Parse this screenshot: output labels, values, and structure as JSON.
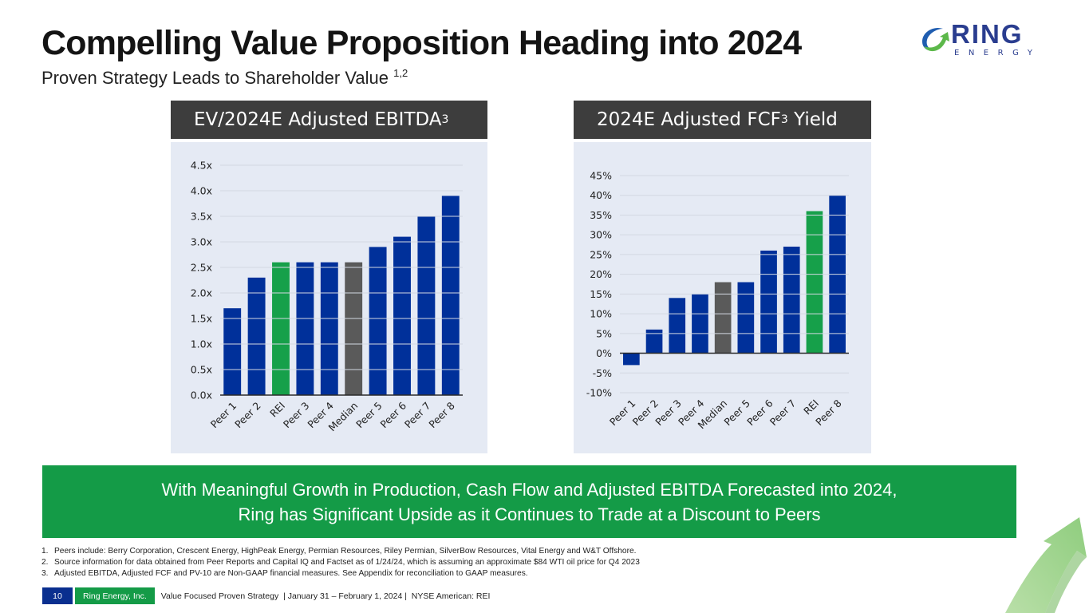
{
  "header": {
    "title": "Compelling Value Proposition Heading into 2024",
    "subtitle": "Proven Strategy Leads to Shareholder Value",
    "subtitle_sup": "1,2"
  },
  "logo": {
    "word": "RING",
    "sub": "ENERGY"
  },
  "colors": {
    "peer": "#00309a",
    "rei": "#16a04a",
    "median": "#5a5a5a",
    "header_bg": "#3d3d3d",
    "panel_bg": "#e5eaf4",
    "banner": "#149b47"
  },
  "charts": {
    "ev_ebitda": {
      "header": "EV/2024E Adjusted EBITDA",
      "header_sup": "3"
    },
    "fcf_yield": {
      "header_pre": "2024E Adjusted FCF",
      "header_sup": "3",
      "header_post": " Yield"
    }
  },
  "chart_data": [
    {
      "type": "bar",
      "title": "EV/2024E Adjusted EBITDA",
      "categories": [
        "Peer 1",
        "Peer 2",
        "REI",
        "Peer 3",
        "Peer 4",
        "Median",
        "Peer 5",
        "Peer 6",
        "Peer 7",
        "Peer 8"
      ],
      "values": [
        1.7,
        2.3,
        2.6,
        2.6,
        2.6,
        2.6,
        2.9,
        3.1,
        3.5,
        3.9
      ],
      "highlight": {
        "REI": "rei",
        "Median": "median"
      },
      "ylim": [
        0,
        4.5
      ],
      "yticks": [
        0,
        0.5,
        1.0,
        1.5,
        2.0,
        2.5,
        3.0,
        3.5,
        4.0,
        4.5
      ],
      "ytick_labels": [
        "0.0x",
        "0.5x",
        "1.0x",
        "1.5x",
        "2.0x",
        "2.5x",
        "3.0x",
        "3.5x",
        "4.0x",
        "4.5x"
      ],
      "xlabel": "",
      "ylabel": "",
      "grid": true,
      "legend": "none"
    },
    {
      "type": "bar",
      "title": "2024E Adjusted FCF Yield",
      "categories": [
        "Peer 1",
        "Peer 2",
        "Peer 3",
        "Peer 4",
        "Median",
        "Peer 5",
        "Peer 6",
        "Peer 7",
        "REI",
        "Peer 8"
      ],
      "values": [
        -3,
        6,
        14,
        15,
        18,
        18,
        26,
        27,
        36,
        40
      ],
      "highlight": {
        "REI": "rei",
        "Median": "median"
      },
      "ylim": [
        -10,
        45
      ],
      "yticks": [
        -10,
        -5,
        0,
        5,
        10,
        15,
        20,
        25,
        30,
        35,
        40,
        45
      ],
      "ytick_labels": [
        "-10%",
        "-5%",
        "0%",
        "5%",
        "10%",
        "15%",
        "20%",
        "25%",
        "30%",
        "35%",
        "40%",
        "45%"
      ],
      "xlabel": "",
      "ylabel": "",
      "grid": true,
      "legend": "none"
    }
  ],
  "banner": {
    "line1": "With Meaningful Growth in Production, Cash Flow and Adjusted EBITDA Forecasted into 2024,",
    "line2": "Ring has Significant Upside as it Continues to Trade at a Discount to Peers"
  },
  "footnotes": [
    {
      "num": "1.",
      "text": "Peers include: Berry Corporation, Crescent Energy, HighPeak Energy, Permian Resources, Riley Permian, SilverBow Resources, Vital Energy and W&T Offshore."
    },
    {
      "num": "2.",
      "text": "Source information for data obtained from Peer Reports and Capital IQ and Factset as of 1/24/24, which is assuming an approximate $84 WTI oil price for Q4 2023"
    },
    {
      "num": "3.",
      "text": "Adjusted EBITDA, Adjusted FCF and PV-10 are Non-GAAP financial measures. See Appendix for reconciliation to GAAP measures."
    }
  ],
  "footer": {
    "page": "10",
    "company": "Ring Energy, Inc.",
    "text": "Value Focused Proven Strategy  | January 31 – February 1, 2024 |  NYSE American: REI"
  }
}
